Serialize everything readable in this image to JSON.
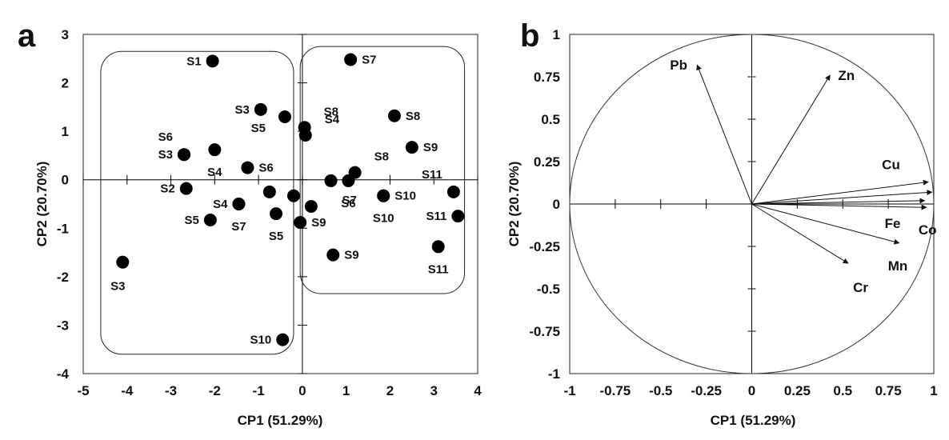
{
  "panels": {
    "a": {
      "letter": "a"
    },
    "b": {
      "letter": "b"
    }
  },
  "colors": {
    "ink": "#111111",
    "background": "#ffffff",
    "point": "#000000"
  },
  "chart_data": [
    {
      "type": "scatter",
      "panel": "a",
      "title": "",
      "xlabel": "CP1 (51.29%)",
      "ylabel": "CP2 (20.70%)",
      "xlim": [
        -5,
        4
      ],
      "ylim": [
        -4,
        3
      ],
      "xticks": [
        -5,
        -4,
        -3,
        -2,
        -1,
        0,
        1,
        2,
        3,
        4
      ],
      "yticks": [
        -4,
        -3,
        -2,
        -1,
        0,
        1,
        2,
        3
      ],
      "grid": false,
      "groups": [
        {
          "xlim": [
            -4.6,
            -0.2
          ],
          "ylim": [
            -3.6,
            2.65
          ]
        },
        {
          "xlim": [
            -0.05,
            3.7
          ],
          "ylim": [
            -2.35,
            2.75
          ]
        }
      ],
      "points": [
        {
          "label": "S1",
          "x": -2.05,
          "y": 2.45,
          "label_side": "left"
        },
        {
          "label": "S7",
          "x": 1.1,
          "y": 2.48,
          "label_side": "right"
        },
        {
          "label": "S3",
          "x": -0.95,
          "y": 1.45,
          "label_side": "left"
        },
        {
          "label": "S8",
          "x": 0.05,
          "y": 1.08,
          "label_side": "up-right"
        },
        {
          "label": "S8",
          "x": 2.1,
          "y": 1.32,
          "label_side": "right"
        },
        {
          "label": "S5",
          "x": -0.4,
          "y": 1.3,
          "label_side": "down-left"
        },
        {
          "label": "S4",
          "x": 0.07,
          "y": 0.92,
          "label_side": "up-right"
        },
        {
          "label": "S6",
          "x": -2.7,
          "y": 0.52,
          "label_side": "up-left"
        },
        {
          "label": "S3",
          "x": -2.7,
          "y": 0.52,
          "label_side": "left"
        },
        {
          "label": "S4",
          "x": -2.0,
          "y": 0.62,
          "label_side": "below"
        },
        {
          "label": "S9",
          "x": 2.5,
          "y": 0.67,
          "label_side": "right"
        },
        {
          "label": "S6",
          "x": -1.25,
          "y": 0.25,
          "label_side": "right"
        },
        {
          "label": "S8",
          "x": 1.2,
          "y": 0.15,
          "label_side": "up-right"
        },
        {
          "label": "S11",
          "x": 3.45,
          "y": -0.25,
          "label_side": "up-left"
        },
        {
          "label": "S2",
          "x": -2.65,
          "y": -0.18,
          "label_side": "left"
        },
        {
          "label": "S7",
          "x": 0.65,
          "y": -0.02,
          "label_side": "below-right"
        },
        {
          "label": "S6",
          "x": 1.05,
          "y": -0.02,
          "label_side": "below"
        },
        {
          "label": "S10",
          "x": 1.85,
          "y": -0.33,
          "label_side": "right"
        },
        {
          "label": "S4",
          "x": -1.45,
          "y": -0.5,
          "label_side": "left"
        },
        {
          "label": "S7",
          "x": -1.45,
          "y": -0.5,
          "label_side": "below"
        },
        {
          "label": "",
          "x": -0.75,
          "y": -0.25
        },
        {
          "label": "",
          "x": -0.2,
          "y": -0.33
        },
        {
          "label": "",
          "x": 0.2,
          "y": -0.55
        },
        {
          "label": "S5",
          "x": -2.1,
          "y": -0.83,
          "label_side": "left"
        },
        {
          "label": "S5",
          "x": -0.6,
          "y": -0.7,
          "label_side": "below"
        },
        {
          "label": "S9",
          "x": -0.05,
          "y": -0.88,
          "label_side": "right"
        },
        {
          "label": "S10",
          "x": 1.85,
          "y": -0.33,
          "label_side": "below"
        },
        {
          "label": "S11",
          "x": 3.55,
          "y": -0.75,
          "label_side": "left"
        },
        {
          "label": "S11",
          "x": 3.1,
          "y": -1.38,
          "label_side": "below"
        },
        {
          "label": "S9",
          "x": 0.7,
          "y": -1.55,
          "label_side": "right"
        },
        {
          "label": "S3",
          "x": -4.1,
          "y": -1.7,
          "label_side": "below-left"
        },
        {
          "label": "S10",
          "x": -0.45,
          "y": -3.3,
          "label_side": "left"
        }
      ]
    },
    {
      "type": "biplot",
      "panel": "b",
      "title": "",
      "xlabel": "CP1 (51.29%)",
      "ylabel": "CP2 (20.70%)",
      "xlim": [
        -1,
        1
      ],
      "ylim": [
        -1,
        1
      ],
      "xticks": [
        -1,
        -0.75,
        -0.5,
        -0.25,
        0,
        0.25,
        0.5,
        0.75,
        1
      ],
      "yticks": [
        -1,
        -0.75,
        -0.5,
        -0.25,
        0,
        0.25,
        0.5,
        0.75,
        1
      ],
      "grid": false,
      "unit_circle": true,
      "variables": [
        {
          "name": "Pb",
          "x": -0.3,
          "y": 0.82
        },
        {
          "name": "Zn",
          "x": 0.43,
          "y": 0.76
        },
        {
          "name": "Cu",
          "x": 0.97,
          "y": 0.13
        },
        {
          "name": "",
          "x": 0.99,
          "y": 0.07
        },
        {
          "name": "Fe",
          "x": 0.95,
          "y": 0.02
        },
        {
          "name": "Co",
          "x": 0.96,
          "y": -0.02
        },
        {
          "name": "Mn",
          "x": 0.81,
          "y": -0.23
        },
        {
          "name": "Cr",
          "x": 0.53,
          "y": -0.35
        }
      ]
    }
  ]
}
